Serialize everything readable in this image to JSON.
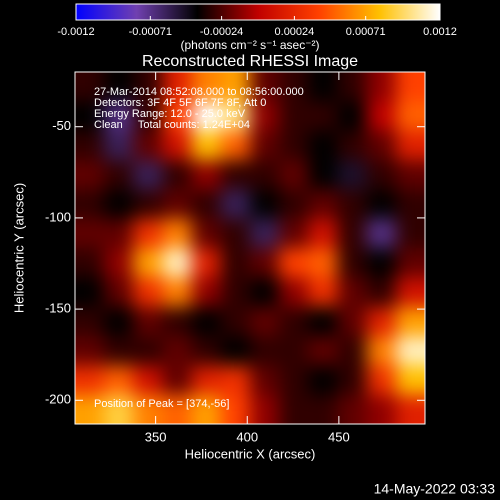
{
  "chart_data": {
    "type": "heatmap",
    "title": "Reconstructed RHESSI Image",
    "xlabel": "Heliocentric X (arcsec)",
    "ylabel": "Heliocentric Y (arcsec)",
    "xlim": [
      306,
      497
    ],
    "ylim": [
      -213,
      -20
    ],
    "xticks": [
      350,
      400,
      450
    ],
    "yticks": [
      -50,
      -100,
      -150,
      -200
    ],
    "colorbar_label": "(photons cm⁻² s⁻¹ asec⁻²)",
    "clim": [
      -0.0012,
      0.0012
    ],
    "cticks": [
      -0.0012,
      -0.00071,
      -0.00024,
      0.00024,
      0.00071,
      0.0012
    ],
    "colormap": [
      "#0000ff",
      "#7040b0",
      "#000000",
      "#c00000",
      "#ff4000",
      "#ffc000",
      "#ffffff"
    ],
    "annotations": [
      "27-Mar-2014 08:52:08.000 to 08:56:00.000",
      "Detectors: 3F 4F 5F 6F 7F 8F, Att 0",
      "Energy Range: 12.0 - 25.0 keV",
      "Clean     Total counts: 1.24E+04"
    ],
    "peak_label": "Position of Peak = [374,-56]",
    "footer": "14-May-2022 03:33",
    "z": [
      [
        -0.0003,
        -0.0004,
        -0.0003,
        0.0002,
        0.0006,
        0.0007,
        -0.0002,
        -0.0003,
        -0.0004,
        -0.0003,
        -0.0001,
        0.0004
      ],
      [
        -0.0004,
        -0.0007,
        -0.0003,
        0.0004,
        0.0012,
        0.001,
        -0.0001,
        -0.0003,
        -0.0003,
        -0.0004,
        0,
        0.0005
      ],
      [
        -0.0003,
        -0.0006,
        -0.0002,
        0.0001,
        0.0008,
        0.0005,
        -0.0002,
        -0.0003,
        -0.0004,
        -0.0003,
        -0.0002,
        0.0002
      ],
      [
        -0.0002,
        -0.0003,
        -0.0006,
        -0.0003,
        -0.0001,
        -0.0003,
        -0.0003,
        -0.0002,
        -0.0004,
        -0.0005,
        -0.0003,
        -0.0002
      ],
      [
        -0.0003,
        -0.0004,
        -0.0003,
        -0.0002,
        -0.0003,
        -0.0006,
        -0.0004,
        -0.0003,
        -0.0002,
        -0.0003,
        -0.0004,
        -0.0003
      ],
      [
        -0.0002,
        -0.0002,
        0.0003,
        0.0006,
        -0.0002,
        -0.0003,
        -0.0006,
        -0.0002,
        0.0001,
        -0.0003,
        -0.0007,
        -0.0003
      ],
      [
        -0.0003,
        -0.0001,
        0.0007,
        0.0011,
        0.0002,
        -0.0003,
        -0.0002,
        0.0004,
        0.0005,
        -0.0003,
        -0.0004,
        -0.0002
      ],
      [
        -0.0004,
        -0.0002,
        0.0003,
        0.0006,
        -0.0001,
        -0.0003,
        -0.0004,
        -0.0001,
        0.0003,
        -0.0002,
        -0.0003,
        0.0001
      ],
      [
        -0.0003,
        -0.0004,
        -0.0002,
        -0.0003,
        -0.0004,
        -0.0003,
        -0.0002,
        -0.0003,
        -0.0004,
        -0.0002,
        0.0002,
        0.0007
      ],
      [
        -0.0002,
        -0.0003,
        -0.0003,
        -0.0002,
        -0.0003,
        -0.0004,
        -0.0003,
        -0.0003,
        -0.0002,
        -0.0003,
        0.0006,
        0.0011
      ],
      [
        0.0003,
        0.0005,
        0.0001,
        -0.0002,
        0.0002,
        0.0003,
        -0.0002,
        -0.0003,
        -0.0004,
        -0.0003,
        0.0003,
        0.0008
      ],
      [
        0.0007,
        0.0009,
        0.0006,
        0.0005,
        0.0007,
        0.0004,
        -0.0001,
        -0.0003,
        -0.0003,
        -0.0002,
        -0.0001,
        0.0002
      ]
    ]
  }
}
